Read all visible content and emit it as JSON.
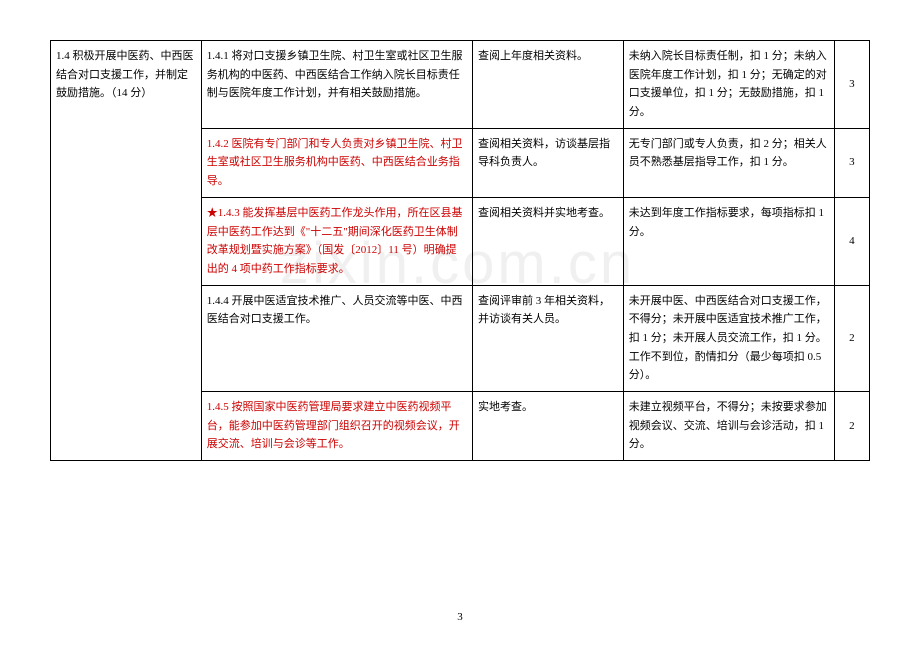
{
  "watermark": "zixin.com.cn",
  "page_number": "3",
  "table": {
    "rows": [
      {
        "col1": "1.4 积极开展中医药、中西医结合对口支援工作，并制定鼓励措施。（14 分）",
        "col1_rowspan": 5,
        "col2": "1.4.1 将对口支援乡镇卫生院、村卫生室或社区卫生服务机构的中医药、中西医结合工作纳入院长目标责任制与医院年度工作计划，并有相关鼓励措施。",
        "col2_red": false,
        "col3": "查阅上年度相关资料。",
        "col4": "未纳入院长目标责任制，扣 1 分；未纳入医院年度工作计划，扣 1 分；无确定的对口支援单位，扣 1 分；无鼓励措施，扣 1 分。",
        "col5": "3"
      },
      {
        "col2": "1.4.2 医院有专门部门和专人负责对乡镇卫生院、村卫生室或社区卫生服务机构中医药、中西医结合业务指导。",
        "col2_red": true,
        "col3": "查阅相关资料，访谈基层指导科负责人。",
        "col4": "无专门部门或专人负责，扣 2 分；相关人员不熟悉基层指导工作，扣 1 分。",
        "col5": "3"
      },
      {
        "col2": "★1.4.3 能发挥基层中医药工作龙头作用，所在区县基层中医药工作达到《\"十二五\"期间深化医药卫生体制改革规划暨实施方案》（国发〔2012〕11 号）明确提出的 4 项中药工作指标要求。",
        "col2_red": true,
        "col3": "查阅相关资料并实地考查。",
        "col4": "未达到年度工作指标要求，每项指标扣 1 分。",
        "col5": "4"
      },
      {
        "col2": "1.4.4 开展中医适宜技术推广、人员交流等中医、中西医结合对口支援工作。",
        "col2_red": false,
        "col3": "查阅评审前 3 年相关资料，并访谈有关人员。",
        "col4": "未开展中医、中西医结合对口支援工作，不得分；未开展中医适宜技术推广工作，扣 1 分；未开展人员交流工作，扣 1 分。工作不到位，酌情扣分（最少每项扣 0.5 分）。",
        "col5": "2"
      },
      {
        "col2": "1.4.5 按照国家中医药管理局要求建立中医药视频平台，能参加中医药管理部门组织召开的视频会议，开展交流、培训与会诊等工作。",
        "col2_red": true,
        "col3": "实地考查。",
        "col4": "未建立视频平台，不得分；未按要求参加视频会议、交流、培训与会诊活动，扣 1 分。",
        "col5": "2"
      }
    ]
  }
}
